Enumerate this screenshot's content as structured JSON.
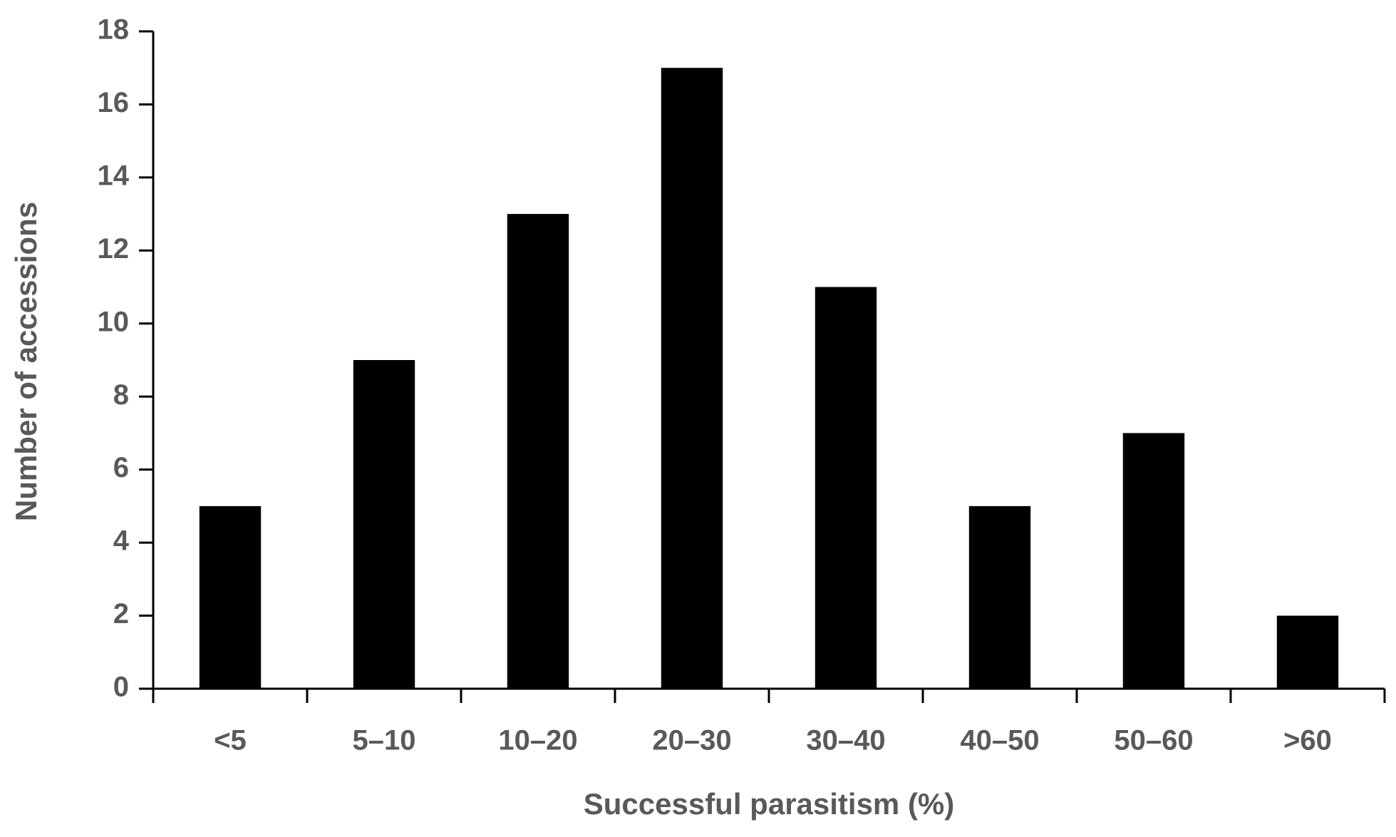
{
  "chart_data": {
    "type": "bar",
    "x_label": "Successful parasitism (%)",
    "y_label": "Number of accessions",
    "categories": [
      "<5",
      "5–10",
      "10–20",
      "20–30",
      "30–40",
      "40–50",
      "50–60",
      ">60"
    ],
    "values": [
      5,
      9,
      13,
      17,
      11,
      5,
      7,
      2
    ],
    "color": "#000000",
    "ylim": [
      0,
      18
    ],
    "yticks": [
      0,
      2,
      4,
      6,
      8,
      10,
      12,
      14,
      16,
      18
    ],
    "grid": false
  }
}
